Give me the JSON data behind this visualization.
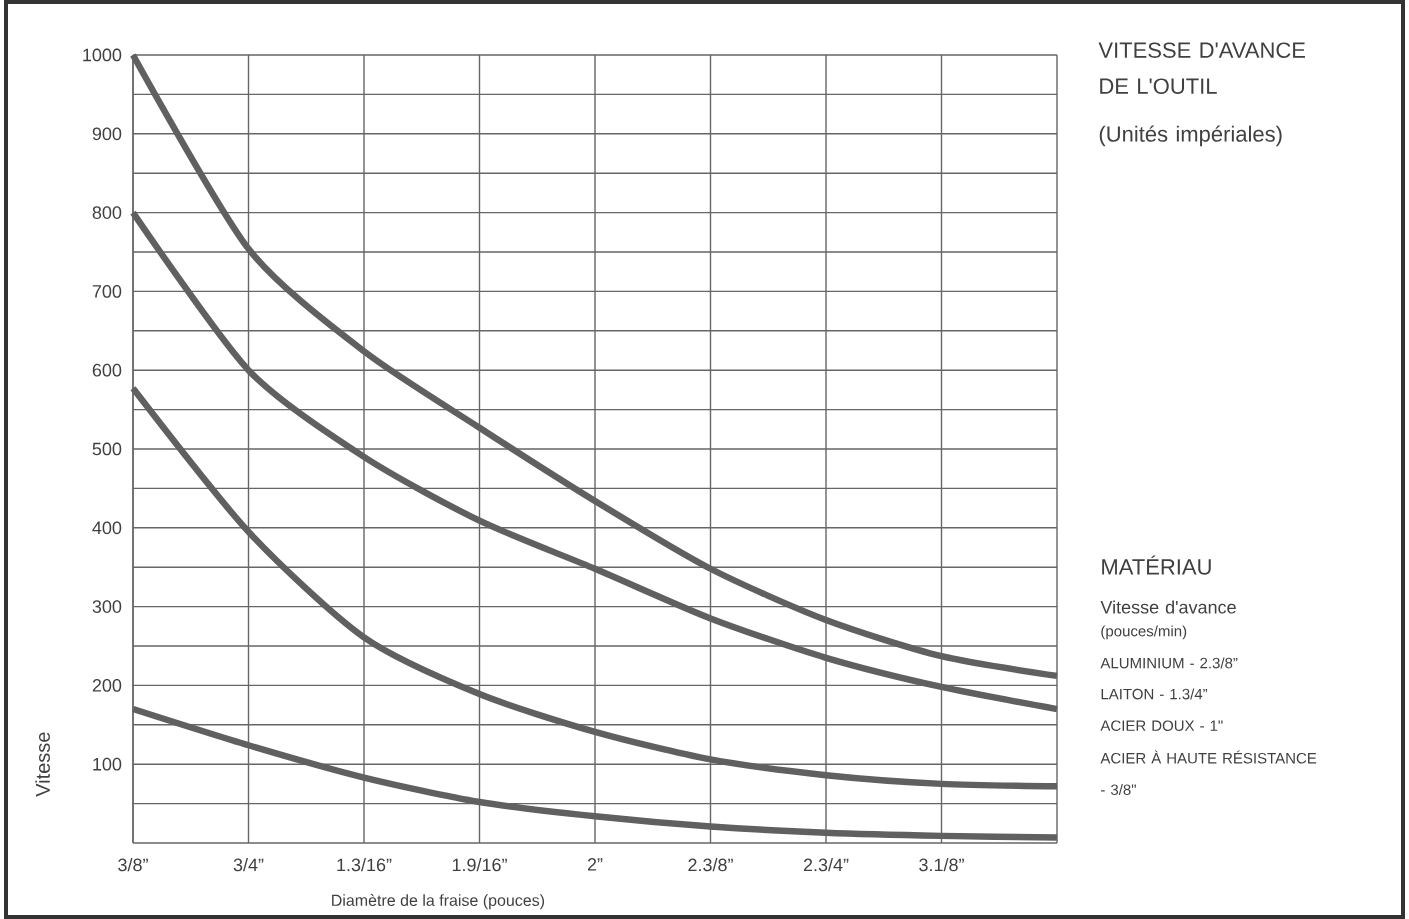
{
  "chart_data": {
    "type": "line",
    "title": "VITESSE D'AVANCE DE L'OUTIL",
    "subtitle": "(Unités impériales)",
    "xlabel": "Diamètre de la fraise (pouces)",
    "ylabel": "Vitesse",
    "annotations": [
      "MATÉRIAU",
      "Vitesse d'avance",
      "(pouces/min)",
      "ALUMINIUM -  2.3/8”",
      "LAITON - 1.3/4”",
      "ACIER DOUX -  1\"",
      "ACIER À HAUTE RÉSISTANCE - 3/8\""
    ],
    "categories": [
      "3/8”",
      "3/4”",
      "1.3/16”",
      "1.9/16”",
      "2”",
      "2.3/8”",
      "2.3/4”",
      "3.1/8”",
      null
    ],
    "series": [
      {
        "color": "#606060",
        "values": [
          1000,
          754,
          624,
          527,
          434,
          348,
          283,
          237,
          212
        ]
      },
      {
        "color": "#606060",
        "values": [
          800,
          600,
          490,
          409,
          348,
          285,
          235,
          198,
          170
        ]
      },
      {
        "color": "#606060",
        "values": [
          577,
          395,
          261,
          189,
          141,
          106,
          86,
          75,
          72
        ]
      },
      {
        "color": "#606060",
        "values": [
          170,
          124,
          83,
          52,
          34,
          21,
          13,
          9,
          7
        ]
      }
    ],
    "ylim": [
      0,
      1000
    ],
    "yticks": [
      {
        "value": 50,
        "label": null
      },
      100,
      {
        "value": 150,
        "label": null
      },
      200,
      {
        "value": 250,
        "label": null
      },
      300,
      {
        "value": 350,
        "label": null
      },
      400,
      {
        "value": 450,
        "label": null
      },
      500,
      {
        "value": 550,
        "label": null
      },
      600,
      {
        "value": 650,
        "label": null
      },
      700,
      {
        "value": 750,
        "label": null
      },
      800,
      {
        "value": 850,
        "label": null
      },
      900,
      {
        "value": 950,
        "label": null
      },
      1000
    ],
    "grid": true
  }
}
